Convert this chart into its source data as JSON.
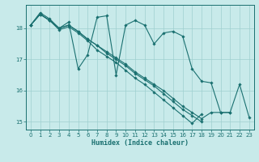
{
  "xlabel": "Humidex (Indice chaleur)",
  "background_color": "#c8eaea",
  "grid_color": "#9fcfcf",
  "line_color": "#1a7070",
  "xlim": [
    -0.5,
    23.5
  ],
  "ylim": [
    14.75,
    18.75
  ],
  "yticks": [
    15,
    16,
    17,
    18
  ],
  "xticks": [
    0,
    1,
    2,
    3,
    4,
    5,
    6,
    7,
    8,
    9,
    10,
    11,
    12,
    13,
    14,
    15,
    16,
    17,
    18,
    19,
    20,
    21,
    22,
    23
  ],
  "line1_x": [
    0,
    1,
    2,
    3,
    4,
    5,
    6,
    7,
    8,
    9,
    10,
    11,
    12,
    13,
    14,
    15,
    16,
    17,
    18,
    19,
    20,
    21,
    22,
    23
  ],
  "line1_y": [
    18.1,
    18.5,
    18.3,
    18.0,
    18.2,
    16.7,
    17.15,
    18.35,
    18.4,
    16.5,
    18.1,
    18.25,
    18.1,
    17.5,
    17.85,
    17.9,
    17.75,
    16.7,
    16.3,
    16.25,
    15.3,
    15.3,
    16.2,
    15.15
  ],
  "line2_x": [
    0,
    1,
    2,
    3,
    4,
    5,
    6,
    7,
    8,
    9,
    10,
    11,
    12,
    13,
    14,
    15,
    16,
    17,
    18,
    19,
    20,
    21
  ],
  "line2_y": [
    18.1,
    18.45,
    18.25,
    18.0,
    18.1,
    17.9,
    17.65,
    17.45,
    17.25,
    17.05,
    16.85,
    16.6,
    16.4,
    16.2,
    16.0,
    15.75,
    15.5,
    15.3,
    15.1,
    15.3,
    15.3,
    15.3
  ],
  "line3_x": [
    0,
    1,
    2,
    3,
    4,
    5,
    6,
    7,
    8,
    9,
    10,
    11,
    12,
    13,
    14,
    15,
    16,
    17,
    18
  ],
  "line3_y": [
    18.1,
    18.45,
    18.25,
    18.0,
    18.1,
    17.9,
    17.65,
    17.45,
    17.2,
    17.0,
    16.8,
    16.55,
    16.35,
    16.15,
    15.9,
    15.65,
    15.4,
    15.2,
    15.0
  ],
  "line4_x": [
    0,
    1,
    2,
    3,
    4,
    5,
    6,
    7,
    8,
    9,
    10,
    11,
    12,
    13,
    14,
    15,
    16,
    17,
    18
  ],
  "line4_y": [
    18.1,
    18.45,
    18.25,
    17.95,
    18.05,
    17.85,
    17.6,
    17.3,
    17.1,
    16.9,
    16.65,
    16.4,
    16.2,
    15.95,
    15.7,
    15.45,
    15.2,
    14.95,
    15.25
  ]
}
